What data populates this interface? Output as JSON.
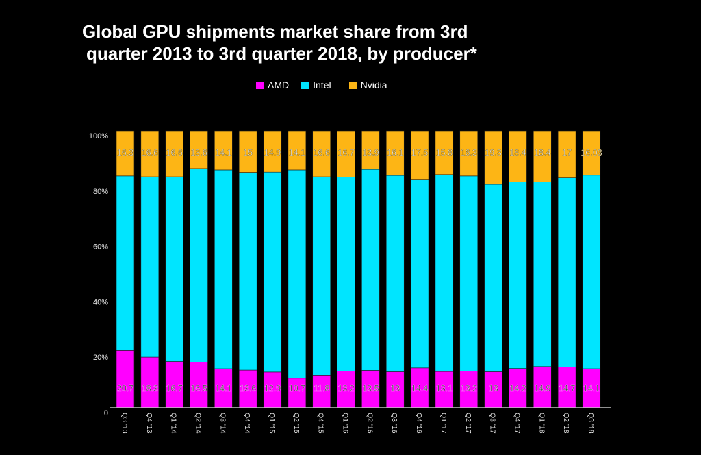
{
  "chart_data": {
    "type": "bar",
    "stacked": true,
    "title": "Global GPU shipments market share from 3rd quarter 2013 to 3rd quarter 2018, by producer*",
    "title_lines": [
      "Global GPU shipments market share from 3rd",
      "quarter 2013 to 3rd quarter 2018, by producer*"
    ],
    "xlabel": "",
    "ylabel": "",
    "ylim": [
      0,
      100
    ],
    "yticks": [
      {
        "value": 0,
        "label": "0"
      },
      {
        "value": 20,
        "label": "20%"
      },
      {
        "value": 40,
        "label": "40%"
      },
      {
        "value": 60,
        "label": "60%"
      },
      {
        "value": 80,
        "label": "80%"
      },
      {
        "value": 100,
        "label": "100%"
      }
    ],
    "grid": false,
    "legend_position": "top-center",
    "categories": [
      "Q3 '13",
      "Q4 '13",
      "Q1 '14",
      "Q2 '14",
      "Q3 '14",
      "Q4 '14",
      "Q1 '15",
      "Q2 '15",
      "Q4 '15",
      "Q1 '16",
      "Q2 '16",
      "Q3 '16",
      "Q4 '16",
      "Q1 '17",
      "Q2 '17",
      "Q3 '17",
      "Q4 '17",
      "Q1 '18",
      "Q2 '18",
      "Q3 '18"
    ],
    "series": [
      {
        "name": "AMD",
        "color": "#ff00ff",
        "label_color": "#222222",
        "show_labels": true,
        "values": [
          20.7,
          18.3,
          16.7,
          16.5,
          14.1,
          13.6,
          12.9,
          10.7,
          11.8,
          13.2,
          13.5,
          13,
          14.4,
          13.1,
          13.2,
          13,
          14.2,
          14.9,
          14.7,
          14.1
        ],
        "labels": [
          "20.7",
          "18.3",
          "16.7",
          "16.5",
          "14.1",
          "13.6",
          "12.9",
          "10.7",
          "11.8",
          "13.2",
          "13.5",
          "13",
          "14.4",
          "13.1",
          "13.2",
          "13",
          "14.2",
          "14.9",
          "14.7",
          "14.1"
        ]
      },
      {
        "name": "Intel",
        "color": "#00e5ff",
        "label_color": "#222222",
        "show_labels": false,
        "values": [
          63.0,
          65.1,
          66.7,
          69.9,
          71.8,
          71.4,
          72.2,
          75.2,
          71.6,
          70.1,
          72.6,
          70.9,
          68.1,
          71.1,
          70.5,
          67.7,
          67.4,
          66.7,
          68.3,
          69.87
        ]
      },
      {
        "name": "Nvidia",
        "color": "#fdb515",
        "label_color": "#ffffff",
        "show_labels": true,
        "values": [
          16.3,
          16.6,
          16.6,
          13.6,
          14.1,
          15,
          14.9,
          14.1,
          16.6,
          16.7,
          13.9,
          16.1,
          17.5,
          15.8,
          16.3,
          19.3,
          18.4,
          18.4,
          17,
          16.03
        ],
        "labels": [
          "16.3",
          "16.6",
          "16.6",
          "13.6",
          "14.1",
          "15",
          "14.9",
          "14.1",
          "16.6",
          "16.7",
          "13.9",
          "16.1",
          "17.5",
          "15.8",
          "16.3",
          "19.3",
          "18.4",
          "18.4",
          "17",
          "16.03"
        ]
      }
    ]
  }
}
